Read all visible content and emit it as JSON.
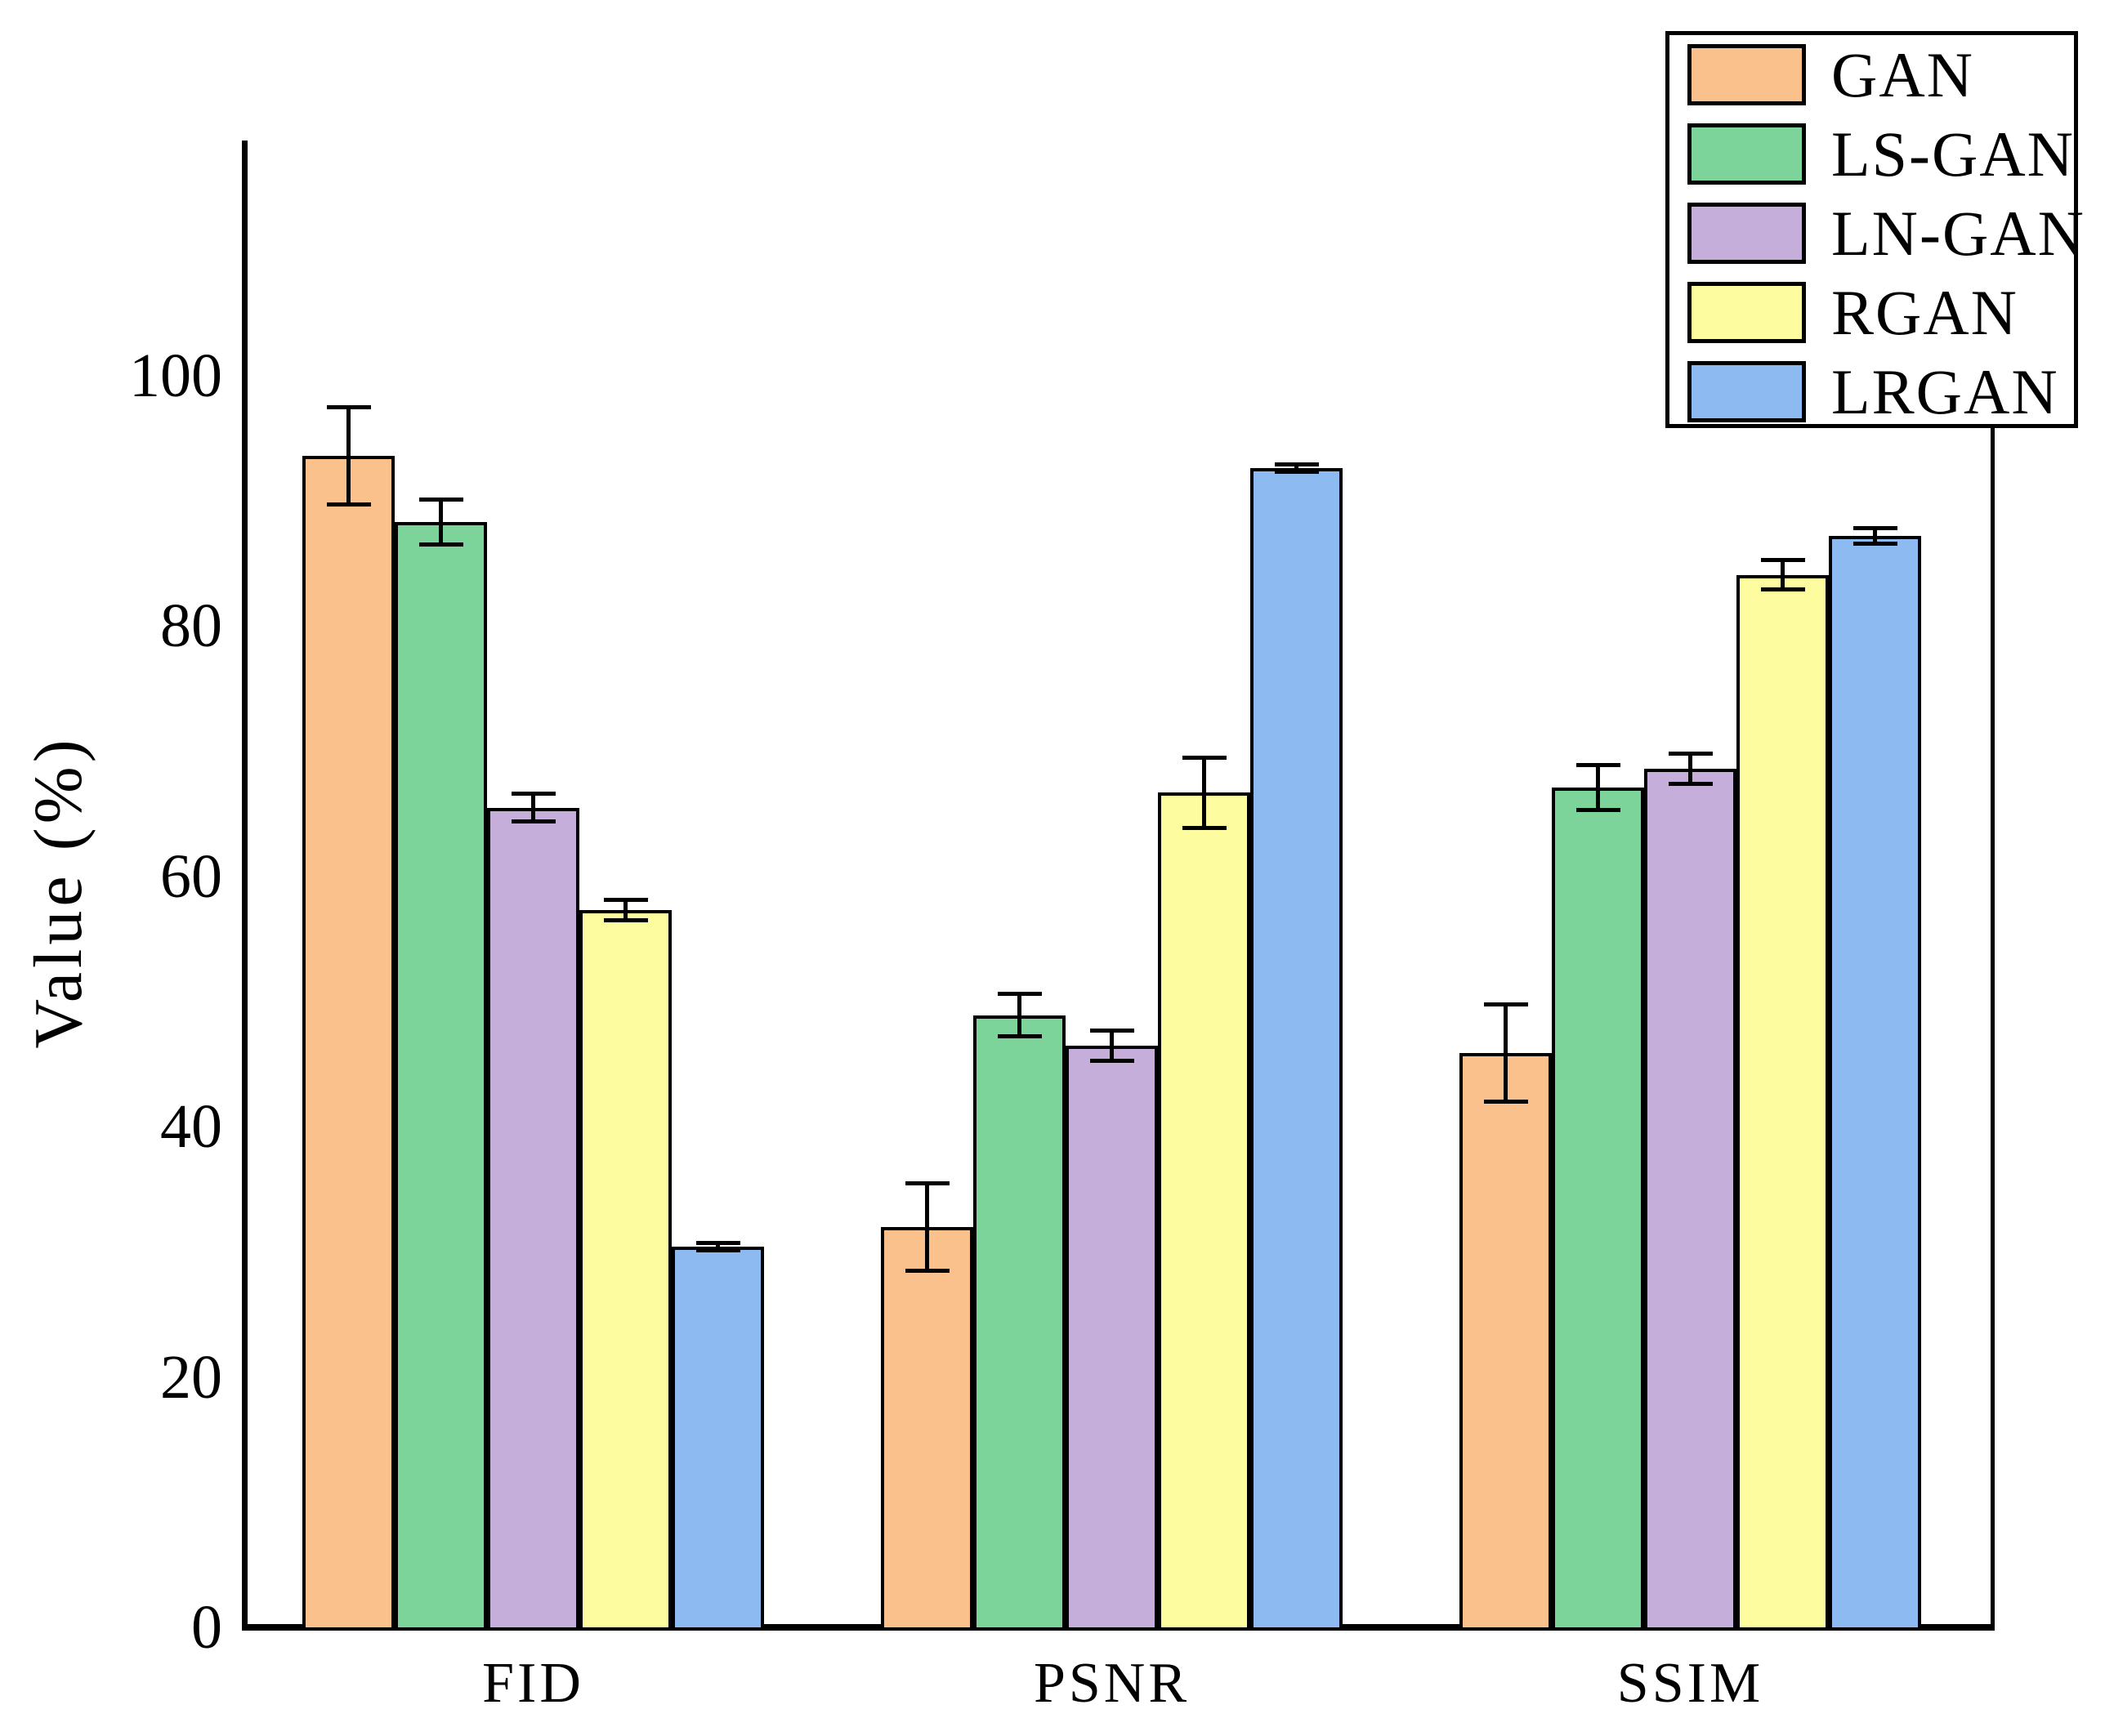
{
  "chart_data": {
    "type": "bar",
    "title": "",
    "xlabel": "",
    "ylabel": "Value (%)",
    "ylim": [
      0,
      118
    ],
    "yticks": [
      0,
      20,
      40,
      60,
      80,
      100
    ],
    "categories": [
      "FID",
      "PSNR",
      "SSIM"
    ],
    "series": [
      {
        "name": "GAN",
        "color": "#FBC18C",
        "values": [
          93.6,
          32.0,
          45.9
        ],
        "errors": [
          3.9,
          3.5,
          3.9
        ]
      },
      {
        "name": "LS-GAN",
        "color": "#7DD49B",
        "values": [
          88.3,
          48.9,
          67.1
        ],
        "errors": [
          1.8,
          1.7,
          1.8
        ]
      },
      {
        "name": "LN-GAN",
        "color": "#C6AEDA",
        "values": [
          65.5,
          46.5,
          68.6
        ],
        "errors": [
          1.1,
          1.2,
          1.2
        ]
      },
      {
        "name": "RGAN",
        "color": "#FDFD9F",
        "values": [
          57.3,
          66.7,
          84.1
        ],
        "errors": [
          0.8,
          2.8,
          1.2
        ]
      },
      {
        "name": "LRGAN",
        "color": "#8CBAF1",
        "values": [
          30.4,
          92.6,
          87.2
        ],
        "errors": [
          0.3,
          0.3,
          0.6
        ]
      }
    ],
    "legend_position": "upper right",
    "grid": false,
    "bar_edge_color": "#000000",
    "error_bar_color": "#000000",
    "background_color": "#ffffff"
  }
}
